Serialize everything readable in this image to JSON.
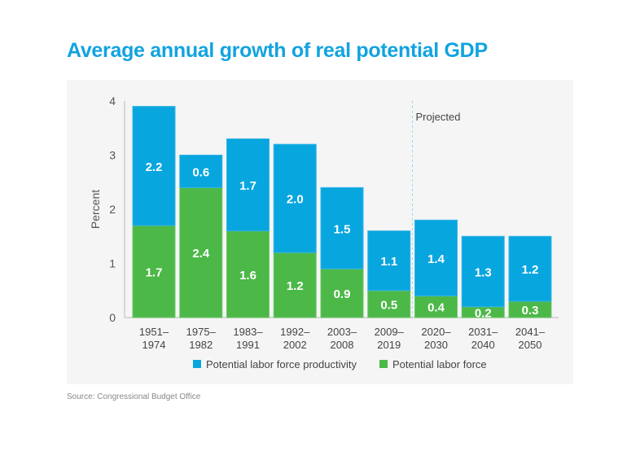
{
  "chart_data": {
    "type": "bar",
    "stacked": true,
    "title": "Average annual growth of real potential GDP",
    "ylabel": "Percent",
    "xlabel": "",
    "ylim": [
      0,
      4
    ],
    "yticks": [
      "0",
      "1",
      "2",
      "3",
      "4"
    ],
    "categories": [
      [
        "1951–",
        "1974"
      ],
      [
        "1975–",
        "1982"
      ],
      [
        "1983–",
        "1991"
      ],
      [
        "1992–",
        "2002"
      ],
      [
        "2003–",
        "2008"
      ],
      [
        "2009–",
        "2019"
      ],
      [
        "2020–",
        "2030"
      ],
      [
        "2031–",
        "2040"
      ],
      [
        "2041–",
        "2050"
      ]
    ],
    "series": [
      {
        "name": "Potential labor force",
        "color": "#4cb848",
        "values": [
          1.7,
          2.4,
          1.6,
          1.2,
          0.9,
          0.5,
          0.4,
          0.2,
          0.3
        ]
      },
      {
        "name": "Potential labor force productivity",
        "color": "#08a6df",
        "values": [
          2.2,
          0.6,
          1.7,
          2.0,
          1.5,
          1.1,
          1.4,
          1.3,
          1.2
        ]
      }
    ],
    "annotation": {
      "text": "Projected",
      "starts_before_category": "2020–2030"
    },
    "legend": [
      "Potential labor force productivity",
      "Potential labor force"
    ],
    "legend_position": "bottom",
    "grid": false
  },
  "source": "Source: Congressional Budget Office"
}
